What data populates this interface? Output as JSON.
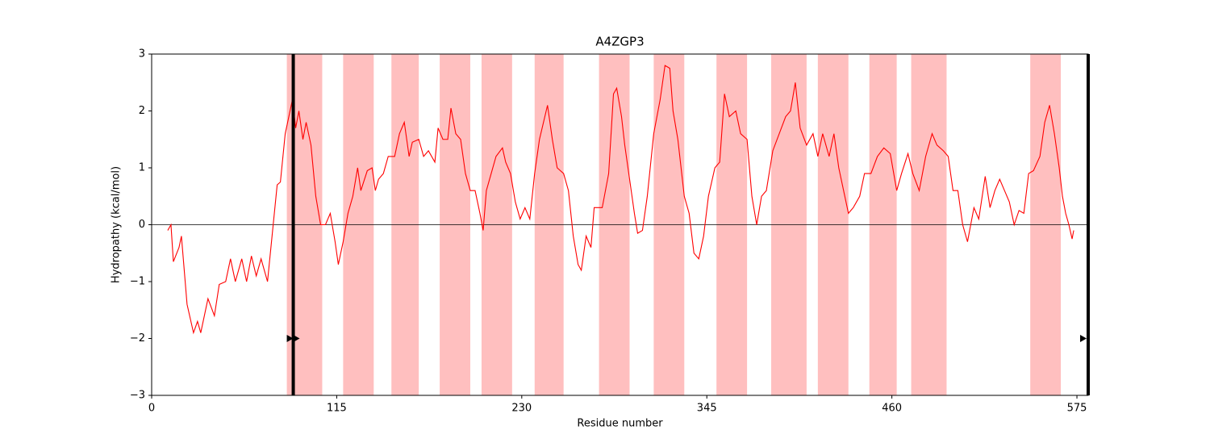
{
  "chart_data": {
    "type": "line",
    "title": "A4ZGP3",
    "x_label": "Residue number",
    "y_label": "Hydropathy (kcal/mol)",
    "xlim": [
      0,
      582
    ],
    "ylim": [
      -3,
      3
    ],
    "xticks": [
      0,
      115,
      230,
      345,
      460,
      575
    ],
    "yticks": [
      {
        "value": -3,
        "label": "−3"
      },
      {
        "value": -2,
        "label": "−2"
      },
      {
        "value": -1,
        "label": "−1"
      },
      0,
      1,
      2,
      3
    ],
    "region_color": "#ffbfbf",
    "regions": [
      [
        84,
        106
      ],
      [
        119,
        138
      ],
      [
        149,
        166
      ],
      [
        179,
        198
      ],
      [
        205,
        224
      ],
      [
        238,
        256
      ],
      [
        278,
        297
      ],
      [
        312,
        331
      ],
      [
        351,
        370
      ],
      [
        385,
        407
      ],
      [
        414,
        433
      ],
      [
        446,
        463
      ],
      [
        472,
        494
      ],
      [
        546,
        565
      ]
    ],
    "hline": 0,
    "vlines": [
      88,
      582
    ],
    "arrows": {
      "x": [
        86,
        90,
        579
      ],
      "y": [
        -2,
        -2,
        -2
      ]
    },
    "series": [
      {
        "color": "#ff0000",
        "x": [
          10,
          12,
          13.5,
          17,
          18.5,
          22,
          26,
          28.5,
          30.5,
          35,
          39,
          42,
          46,
          49,
          52,
          56,
          59,
          62,
          65,
          68,
          72,
          75,
          78,
          80,
          83,
          86,
          87.5,
          89.5,
          91.5,
          94,
          96,
          99,
          102,
          105,
          108,
          111,
          114,
          116,
          119,
          122,
          125,
          128,
          130,
          134,
          137,
          139,
          141,
          144,
          147,
          151,
          154,
          157,
          160,
          162,
          166,
          169,
          172,
          176,
          178,
          181,
          184,
          186,
          189,
          192,
          195,
          198,
          201,
          204,
          206,
          208,
          211,
          214,
          218,
          220,
          223,
          226,
          229,
          232,
          235,
          238,
          241,
          246,
          249,
          252,
          256,
          259,
          262,
          265,
          267,
          270,
          273,
          275,
          280,
          284,
          287,
          289,
          292,
          294,
          297,
          300,
          302,
          305,
          308,
          312,
          316,
          319,
          322,
          324,
          327,
          331,
          334,
          337,
          340,
          343,
          346,
          350,
          353,
          356,
          359,
          363,
          366,
          370,
          373,
          376,
          379,
          382,
          386,
          390,
          394,
          397,
          400,
          403,
          407,
          411,
          414,
          417,
          421,
          424,
          427,
          430,
          433,
          436,
          440,
          443,
          447,
          451,
          455,
          459,
          463,
          466,
          470,
          473,
          477,
          481,
          485,
          488,
          492,
          495,
          498,
          501,
          504,
          507,
          511,
          514,
          518,
          521,
          524,
          527,
          530,
          533,
          536,
          539,
          542,
          545,
          548,
          552,
          555,
          558,
          561,
          564,
          566,
          568,
          570,
          572,
          573
        ],
        "values": [
          -0.1,
          0,
          -0.65,
          -0.4,
          -0.2,
          -1.4,
          -1.9,
          -1.7,
          -1.9,
          -1.3,
          -1.6,
          -1.05,
          -1.0,
          -0.6,
          -1.0,
          -0.6,
          -1.0,
          -0.55,
          -0.9,
          -0.6,
          -1.0,
          -0.15,
          0.7,
          0.75,
          1.6,
          2.0,
          2.2,
          1.7,
          2.0,
          1.5,
          1.8,
          1.4,
          0.5,
          0.0,
          0.0,
          0.2,
          -0.3,
          -0.7,
          -0.3,
          0.2,
          0.5,
          1.0,
          0.6,
          0.95,
          1.0,
          0.6,
          0.8,
          0.9,
          1.2,
          1.2,
          1.6,
          1.8,
          1.2,
          1.45,
          1.5,
          1.2,
          1.3,
          1.1,
          1.7,
          1.5,
          1.5,
          2.05,
          1.6,
          1.5,
          0.9,
          0.6,
          0.6,
          0.2,
          -0.1,
          0.6,
          0.9,
          1.2,
          1.35,
          1.1,
          0.9,
          0.4,
          0.1,
          0.3,
          0.1,
          0.9,
          1.5,
          2.1,
          1.5,
          1.0,
          0.9,
          0.6,
          -0.2,
          -0.7,
          -0.8,
          -0.2,
          -0.4,
          0.3,
          0.3,
          0.9,
          2.3,
          2.4,
          1.9,
          1.4,
          0.8,
          0.2,
          -0.15,
          -0.1,
          0.5,
          1.6,
          2.2,
          2.8,
          2.75,
          2.0,
          1.5,
          0.5,
          0.2,
          -0.5,
          -0.6,
          -0.2,
          0.5,
          1.0,
          1.1,
          2.3,
          1.9,
          2.0,
          1.6,
          1.5,
          0.5,
          0.0,
          0.5,
          0.6,
          1.3,
          1.6,
          1.9,
          2.0,
          2.5,
          1.7,
          1.4,
          1.6,
          1.2,
          1.6,
          1.2,
          1.6,
          1.0,
          0.6,
          0.2,
          0.3,
          0.5,
          0.9,
          0.9,
          1.2,
          1.35,
          1.25,
          0.6,
          0.9,
          1.25,
          0.9,
          0.6,
          1.2,
          1.6,
          1.4,
          1.3,
          1.2,
          0.6,
          0.6,
          0.0,
          -0.3,
          0.3,
          0.1,
          0.85,
          0.3,
          0.6,
          0.8,
          0.6,
          0.4,
          0.0,
          0.25,
          0.2,
          0.9,
          0.95,
          1.2,
          1.8,
          2.1,
          1.6,
          1.0,
          0.5,
          0.2,
          0.0,
          -0.25,
          -0.1
        ]
      }
    ]
  }
}
